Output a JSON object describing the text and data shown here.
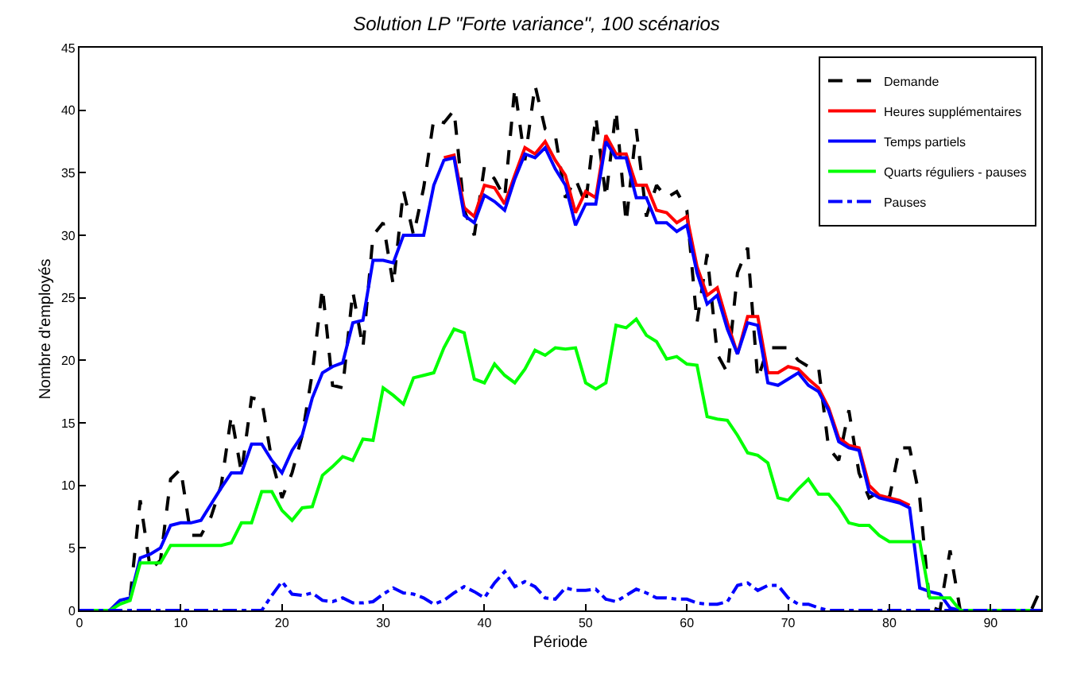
{
  "chart_data": {
    "type": "line",
    "title": "Solution LP \"Forte variance\", 100 scénarios",
    "xlabel": "Période",
    "ylabel": "Nombre d'employés",
    "x": [
      0,
      1,
      2,
      3,
      4,
      5,
      6,
      7,
      8,
      9,
      10,
      11,
      12,
      13,
      14,
      15,
      16,
      17,
      18,
      19,
      20,
      21,
      22,
      23,
      24,
      25,
      26,
      27,
      28,
      29,
      30,
      31,
      32,
      33,
      34,
      35,
      36,
      37,
      38,
      39,
      40,
      41,
      42,
      43,
      44,
      45,
      46,
      47,
      48,
      49,
      50,
      51,
      52,
      53,
      54,
      55,
      56,
      57,
      58,
      59,
      60,
      61,
      62,
      63,
      64,
      65,
      66,
      67,
      68,
      69,
      70,
      71,
      72,
      73,
      74,
      75,
      76,
      77,
      78,
      79,
      80,
      81,
      82,
      83,
      84,
      85,
      86,
      87,
      88,
      89,
      90,
      91,
      92,
      93,
      94,
      95
    ],
    "series": [
      {
        "name": "Demande",
        "color": "#000000",
        "line_style": "dashed",
        "values": [
          0,
          0,
          0,
          0,
          0.8,
          1,
          8.8,
          3.3,
          4,
          10.5,
          11.3,
          6,
          6,
          7.5,
          10,
          15.6,
          11,
          17,
          16.8,
          12,
          9,
          11,
          14,
          19,
          25.8,
          18,
          17.8,
          25.5,
          21,
          30,
          31,
          26,
          33.6,
          30,
          33.8,
          39.3,
          39,
          40,
          32,
          30,
          35.5,
          34.5,
          33,
          41.8,
          36,
          42,
          38.5,
          38,
          33,
          34.5,
          32.5,
          39.5,
          33,
          40,
          31,
          38.5,
          31.5,
          34,
          33,
          33.5,
          32,
          23,
          28.5,
          20.5,
          19,
          27,
          29,
          18.5,
          21,
          21,
          21,
          20,
          19.5,
          19.5,
          13,
          12,
          16,
          11,
          9,
          9.5,
          9,
          13,
          13,
          9,
          0.3,
          0,
          4.8,
          0,
          0,
          0,
          0,
          0,
          0,
          0,
          0,
          1.8
        ]
      },
      {
        "name": "Heures supplémentaires",
        "color": "#ff0000",
        "line_style": "solid",
        "values": [
          null,
          null,
          null,
          null,
          null,
          null,
          null,
          null,
          null,
          null,
          null,
          null,
          null,
          null,
          null,
          null,
          null,
          null,
          null,
          null,
          null,
          null,
          null,
          null,
          null,
          null,
          null,
          null,
          null,
          null,
          null,
          null,
          null,
          null,
          null,
          null,
          36.2,
          36.4,
          32.2,
          31.5,
          34,
          33.8,
          32.5,
          34.8,
          37,
          36.5,
          37.5,
          36,
          34.8,
          31.8,
          33.5,
          33,
          38,
          36.5,
          36.5,
          34,
          34,
          32,
          31.8,
          31,
          31.5,
          27.5,
          25.2,
          25.8,
          23,
          20.5,
          23.5,
          23.5,
          19,
          19,
          19.5,
          19.3,
          18.5,
          17.8,
          16.2,
          13.8,
          13.2,
          13,
          10,
          9.2,
          9,
          8.8,
          8.4,
          null,
          null,
          null,
          null,
          null,
          null,
          null,
          null,
          null,
          null,
          null,
          null,
          null
        ]
      },
      {
        "name": "Temps partiels",
        "color": "#0000ff",
        "line_style": "solid",
        "values": [
          0,
          0,
          0,
          0,
          0.8,
          1,
          4.2,
          4.5,
          5,
          6.8,
          7,
          7,
          7.2,
          8.5,
          9.8,
          11,
          11,
          13.3,
          13.3,
          12,
          11,
          12.8,
          14,
          17,
          19,
          19.5,
          19.8,
          23,
          23.2,
          28,
          28,
          27.8,
          30,
          30,
          30,
          34,
          36,
          36.2,
          31.6,
          31,
          33.2,
          32.7,
          32,
          34.5,
          36.5,
          36.2,
          37,
          35.3,
          34,
          30.8,
          32.5,
          32.5,
          37.5,
          36.2,
          36.2,
          33,
          33,
          31,
          31,
          30.3,
          30.8,
          27,
          24.5,
          25.2,
          22.5,
          20.5,
          23,
          22.8,
          18.2,
          18,
          18.5,
          19,
          18,
          17.5,
          16,
          13.5,
          13,
          12.8,
          9.5,
          9,
          8.8,
          8.6,
          8.2,
          1.8,
          1.5,
          1.3,
          0.2,
          0,
          0,
          0,
          0,
          0,
          0,
          0,
          0,
          0
        ]
      },
      {
        "name": "Quarts réguliers - pauses",
        "color": "#00ff00",
        "line_style": "solid",
        "values": [
          0,
          0,
          0,
          0,
          0.5,
          0.8,
          3.8,
          3.8,
          3.8,
          5.2,
          5.2,
          5.2,
          5.2,
          5.2,
          5.2,
          5.4,
          7,
          7,
          9.5,
          9.5,
          8,
          7.2,
          8.2,
          8.3,
          10.8,
          11.5,
          12.3,
          12,
          13.7,
          13.6,
          17.8,
          17.2,
          16.5,
          18.6,
          18.8,
          19,
          21,
          22.5,
          22.2,
          18.5,
          18.2,
          19.7,
          18.8,
          18.2,
          19.3,
          20.8,
          20.4,
          21,
          20.9,
          21,
          18.2,
          17.7,
          18.2,
          22.8,
          22.6,
          23.3,
          22,
          21.5,
          20.1,
          20.3,
          19.7,
          19.6,
          15.5,
          15.3,
          15.2,
          14,
          12.6,
          12.4,
          11.8,
          9,
          8.8,
          9.7,
          10.5,
          9.3,
          9.3,
          8.3,
          7,
          6.8,
          6.8,
          6,
          5.5,
          5.5,
          5.5,
          5.5,
          1,
          1,
          1,
          0,
          0,
          0,
          0,
          0,
          0,
          0,
          0,
          0
        ]
      },
      {
        "name": "Pauses",
        "color": "#0000ff",
        "line_style": "dashdot",
        "values": [
          0,
          0,
          0,
          0,
          0,
          0,
          0,
          0,
          0,
          0,
          0,
          0,
          0,
          0,
          0,
          0,
          0,
          0,
          0,
          1.2,
          2.3,
          1.3,
          1.2,
          1.4,
          0.8,
          0.7,
          1,
          0.6,
          0.6,
          0.7,
          1.3,
          1.8,
          1.4,
          1.3,
          1,
          0.5,
          0.8,
          1.4,
          1.9,
          1.5,
          1,
          2.2,
          3.1,
          1.9,
          2.3,
          1.9,
          1,
          0.9,
          1.8,
          1.6,
          1.6,
          1.7,
          0.9,
          0.7,
          1.2,
          1.7,
          1.4,
          1,
          1,
          0.9,
          0.9,
          0.6,
          0.5,
          0.5,
          0.7,
          2,
          2.2,
          1.6,
          2,
          2,
          1,
          0.5,
          0.5,
          0.2,
          0,
          0,
          0,
          0,
          0,
          0,
          0,
          0,
          0,
          0,
          0,
          0,
          0,
          0,
          0,
          0,
          0,
          0,
          0,
          0,
          0,
          0
        ]
      }
    ],
    "xlim": [
      0,
      95
    ],
    "xticks": [
      0,
      10,
      20,
      30,
      40,
      50,
      60,
      70,
      80,
      90
    ],
    "ylim": [
      0,
      45
    ],
    "yticks": [
      0,
      5,
      10,
      15,
      20,
      25,
      30,
      35,
      40,
      45
    ],
    "legend": "top right",
    "marker": "none"
  }
}
